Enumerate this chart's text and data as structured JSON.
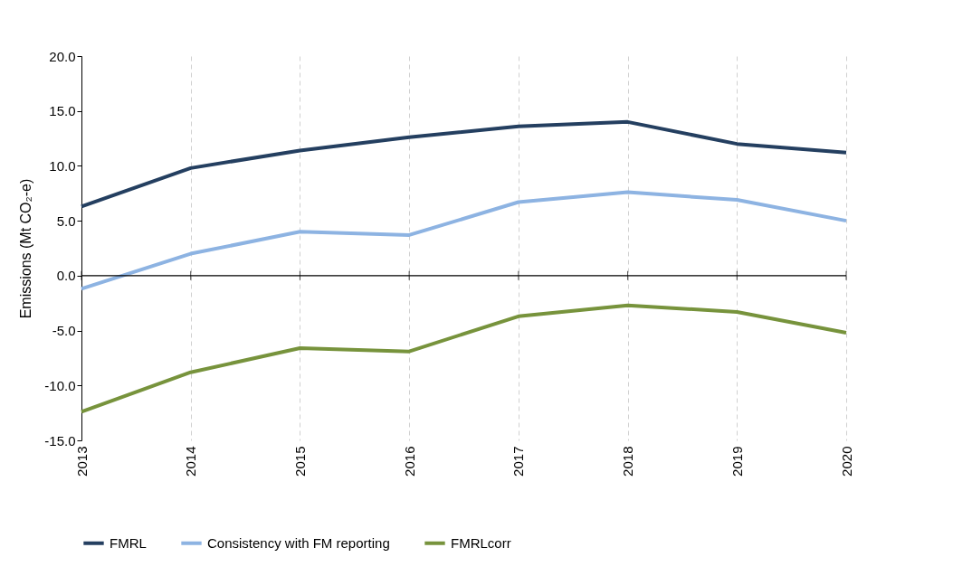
{
  "chart_data": {
    "type": "line",
    "ylabel": "Emissions  (Mt CO₂-e)",
    "x": [
      2013,
      2014,
      2015,
      2016,
      2017,
      2018,
      2019,
      2020
    ],
    "xlim": [
      2013,
      2020
    ],
    "xticks": [
      2013,
      2014,
      2015,
      2016,
      2017,
      2018,
      2019,
      2020
    ],
    "ylim": [
      -15,
      20
    ],
    "yticks": [
      {
        "value": -15,
        "label": "-15.0"
      },
      {
        "value": -10,
        "label": "-10.0"
      },
      {
        "value": -5,
        "label": "-5.0"
      },
      {
        "value": 0,
        "label": "0.0"
      },
      {
        "value": 5,
        "label": "5.0"
      },
      {
        "value": 10,
        "label": "10.0"
      },
      {
        "value": 15,
        "label": "15.0"
      },
      {
        "value": 20,
        "label": "20.0"
      }
    ],
    "grid": "x",
    "legend": "bottom",
    "marker": "none",
    "line_style": "solid",
    "ref_lines": [
      {
        "axis": "y",
        "value": 0,
        "color": "#000000"
      }
    ],
    "series": [
      {
        "name": "FMRL",
        "color": "#243f60",
        "values": [
          6.3,
          9.8,
          11.4,
          12.6,
          13.6,
          14.0,
          12.0,
          11.2
        ]
      },
      {
        "name": "Consistency with FM reporting",
        "color": "#8db3e2",
        "values": [
          -1.2,
          2.0,
          4.0,
          3.7,
          6.7,
          7.6,
          6.9,
          5.0
        ]
      },
      {
        "name": "FMRLcorr",
        "color": "#77933c",
        "values": [
          -12.4,
          -8.8,
          -6.6,
          -6.9,
          -3.7,
          -2.7,
          -3.3,
          -5.2
        ]
      }
    ]
  }
}
